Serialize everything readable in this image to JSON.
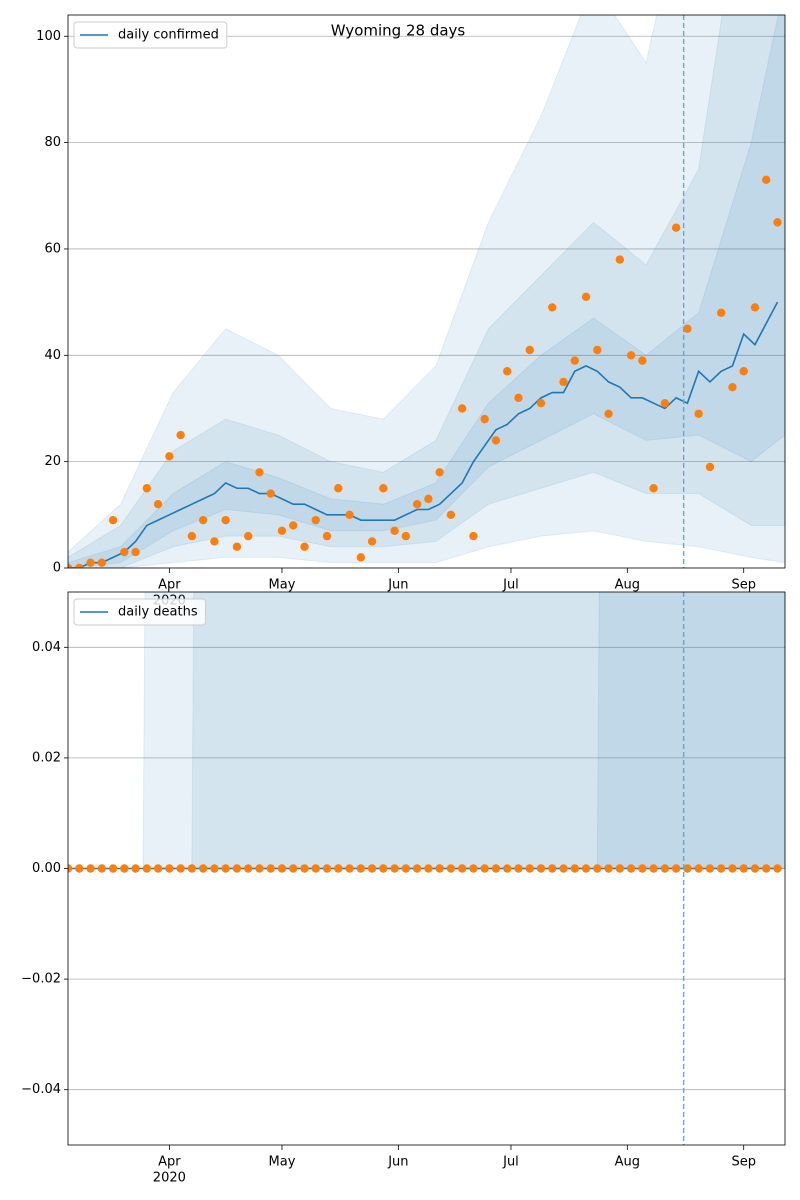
{
  "chart_data": [
    {
      "type": "line",
      "title": "Wyoming 28 days",
      "xlim": [
        "2020-03-05",
        "2020-09-12"
      ],
      "ylim": [
        0,
        104
      ],
      "yticks": [
        0,
        20,
        40,
        60,
        80,
        100
      ],
      "grid": true,
      "xticks": [
        {
          "value": "2020-04-01",
          "label": "Apr",
          "sublabel": "2020"
        },
        {
          "value": "2020-05-01",
          "label": "May"
        },
        {
          "value": "2020-06-01",
          "label": "Jun"
        },
        {
          "value": "2020-07-01",
          "label": "Jul"
        },
        {
          "value": "2020-08-01",
          "label": "Aug"
        },
        {
          "value": "2020-09-01",
          "label": "Sep"
        }
      ],
      "vline": "2020-08-16",
      "vline_color": "#6fa3c7",
      "legend": "upper left",
      "x": [
        "2020-03-05",
        "2020-03-08",
        "2020-03-11",
        "2020-03-14",
        "2020-03-17",
        "2020-03-20",
        "2020-03-23",
        "2020-03-26",
        "2020-03-29",
        "2020-04-01",
        "2020-04-04",
        "2020-04-07",
        "2020-04-10",
        "2020-04-13",
        "2020-04-16",
        "2020-04-19",
        "2020-04-22",
        "2020-04-25",
        "2020-04-28",
        "2020-05-01",
        "2020-05-04",
        "2020-05-07",
        "2020-05-10",
        "2020-05-13",
        "2020-05-16",
        "2020-05-19",
        "2020-05-22",
        "2020-05-25",
        "2020-05-28",
        "2020-05-31",
        "2020-06-03",
        "2020-06-06",
        "2020-06-09",
        "2020-06-12",
        "2020-06-15",
        "2020-06-18",
        "2020-06-21",
        "2020-06-24",
        "2020-06-27",
        "2020-06-30",
        "2020-07-03",
        "2020-07-06",
        "2020-07-09",
        "2020-07-12",
        "2020-07-15",
        "2020-07-18",
        "2020-07-21",
        "2020-07-24",
        "2020-07-27",
        "2020-07-30",
        "2020-08-02",
        "2020-08-05",
        "2020-08-08",
        "2020-08-11",
        "2020-08-14",
        "2020-08-17",
        "2020-08-20",
        "2020-08-23",
        "2020-08-26",
        "2020-08-29",
        "2020-09-01",
        "2020-09-04",
        "2020-09-07",
        "2020-09-10"
      ],
      "bands": [
        {
          "color": "#1f77b4",
          "opacity": 0.1,
          "x": [
            "2020-03-05",
            "2020-03-19",
            "2020-04-02",
            "2020-04-16",
            "2020-04-30",
            "2020-05-14",
            "2020-05-28",
            "2020-06-11",
            "2020-06-25",
            "2020-07-09",
            "2020-07-23",
            "2020-08-06",
            "2020-08-20",
            "2020-09-03",
            "2020-09-12"
          ],
          "lower": [
            0,
            0,
            1,
            2,
            2,
            1,
            1,
            1,
            4,
            6,
            7,
            5,
            4,
            2,
            1
          ],
          "upper": [
            3,
            12,
            33,
            45,
            40,
            30,
            28,
            38,
            65,
            85,
            110,
            95,
            140,
            200,
            250
          ]
        },
        {
          "color": "#1f77b4",
          "opacity": 0.1,
          "x": [
            "2020-03-05",
            "2020-03-19",
            "2020-04-02",
            "2020-04-16",
            "2020-04-30",
            "2020-05-14",
            "2020-05-28",
            "2020-06-11",
            "2020-06-25",
            "2020-07-09",
            "2020-07-23",
            "2020-08-06",
            "2020-08-20",
            "2020-09-03",
            "2020-09-12"
          ],
          "lower": [
            0,
            0,
            4,
            6,
            6,
            4,
            4,
            5,
            12,
            15,
            18,
            14,
            14,
            8,
            8
          ],
          "upper": [
            2,
            8,
            22,
            28,
            25,
            20,
            18,
            24,
            45,
            55,
            65,
            57,
            75,
            140,
            170
          ]
        },
        {
          "color": "#1f77b4",
          "opacity": 0.1,
          "x": [
            "2020-03-05",
            "2020-03-19",
            "2020-04-02",
            "2020-04-16",
            "2020-04-30",
            "2020-05-14",
            "2020-05-28",
            "2020-06-11",
            "2020-06-25",
            "2020-07-09",
            "2020-07-23",
            "2020-08-06",
            "2020-08-20",
            "2020-09-03",
            "2020-09-12"
          ],
          "lower": [
            0,
            1,
            7,
            11,
            10,
            7,
            7,
            9,
            19,
            24,
            29,
            24,
            25,
            20,
            25
          ],
          "upper": [
            1,
            4,
            14,
            20,
            17,
            13,
            12,
            16,
            31,
            40,
            47,
            40,
            48,
            80,
            110
          ]
        }
      ],
      "series": [
        {
          "name": "daily confirmed",
          "type": "line",
          "color": "#1f77b4",
          "values": [
            0,
            0,
            1,
            1,
            2,
            3,
            5,
            8,
            9,
            10,
            11,
            12,
            13,
            14,
            16,
            15,
            15,
            14,
            14,
            13,
            12,
            12,
            11,
            10,
            10,
            10,
            9,
            9,
            9,
            9,
            10,
            11,
            11,
            12,
            14,
            16,
            20,
            23,
            26,
            27,
            29,
            30,
            32,
            33,
            33,
            37,
            38,
            37,
            35,
            34,
            32,
            32,
            31,
            30,
            32,
            31,
            37,
            35,
            37,
            38,
            44,
            42,
            46,
            50
          ]
        },
        {
          "type": "scatter",
          "color": "#ff7f0e",
          "values": [
            0,
            0,
            1,
            1,
            9,
            3,
            3,
            15,
            12,
            21,
            25,
            6,
            9,
            5,
            9,
            4,
            6,
            18,
            14,
            7,
            8,
            4,
            9,
            6,
            15,
            10,
            2,
            5,
            15,
            7,
            6,
            12,
            13,
            18,
            10,
            30,
            6,
            28,
            24,
            37,
            32,
            41,
            31,
            49,
            35,
            39,
            51,
            41,
            29,
            58,
            40,
            39,
            15,
            31,
            64,
            45,
            29,
            19,
            48,
            34,
            37,
            49,
            73,
            65
          ]
        }
      ]
    },
    {
      "type": "line",
      "xlim": [
        "2020-03-05",
        "2020-09-12"
      ],
      "ylim": [
        -0.05,
        0.05
      ],
      "yticks": [
        {
          "value": -0.04,
          "label": "−0.04"
        },
        {
          "value": -0.02,
          "label": "−0.02"
        },
        {
          "value": 0,
          "label": "0.00"
        },
        {
          "value": 0.02,
          "label": "0.02"
        },
        {
          "value": 0.04,
          "label": "0.04"
        }
      ],
      "grid": true,
      "xticks": [
        {
          "value": "2020-04-01",
          "label": "Apr",
          "sublabel": "2020"
        },
        {
          "value": "2020-05-01",
          "label": "May"
        },
        {
          "value": "2020-06-01",
          "label": "Jun"
        },
        {
          "value": "2020-07-01",
          "label": "Jul"
        },
        {
          "value": "2020-08-01",
          "label": "Aug"
        },
        {
          "value": "2020-09-01",
          "label": "Sep"
        }
      ],
      "vline": "2020-08-16",
      "vline_color": "#6fa3c7",
      "legend": "upper left",
      "x": [
        "2020-03-05",
        "2020-03-08",
        "2020-03-11",
        "2020-03-14",
        "2020-03-17",
        "2020-03-20",
        "2020-03-23",
        "2020-03-26",
        "2020-03-29",
        "2020-04-01",
        "2020-04-04",
        "2020-04-07",
        "2020-04-10",
        "2020-04-13",
        "2020-04-16",
        "2020-04-19",
        "2020-04-22",
        "2020-04-25",
        "2020-04-28",
        "2020-05-01",
        "2020-05-04",
        "2020-05-07",
        "2020-05-10",
        "2020-05-13",
        "2020-05-16",
        "2020-05-19",
        "2020-05-22",
        "2020-05-25",
        "2020-05-28",
        "2020-05-31",
        "2020-06-03",
        "2020-06-06",
        "2020-06-09",
        "2020-06-12",
        "2020-06-15",
        "2020-06-18",
        "2020-06-21",
        "2020-06-24",
        "2020-06-27",
        "2020-06-30",
        "2020-07-03",
        "2020-07-06",
        "2020-07-09",
        "2020-07-12",
        "2020-07-15",
        "2020-07-18",
        "2020-07-21",
        "2020-07-24",
        "2020-07-27",
        "2020-07-30",
        "2020-08-02",
        "2020-08-05",
        "2020-08-08",
        "2020-08-11",
        "2020-08-14",
        "2020-08-17",
        "2020-08-20",
        "2020-08-23",
        "2020-08-26",
        "2020-08-29",
        "2020-09-01",
        "2020-09-04",
        "2020-09-07",
        "2020-09-10"
      ],
      "bands": [
        {
          "color": "#1f77b4",
          "opacity": 0.1,
          "x": [
            "2020-03-05",
            "2020-03-25",
            "2020-03-26",
            "2020-09-12"
          ],
          "lower": [
            0,
            0,
            0,
            0
          ],
          "upper": [
            0,
            0,
            0.1,
            0.1
          ]
        },
        {
          "color": "#1f77b4",
          "opacity": 0.1,
          "x": [
            "2020-03-05",
            "2020-04-07",
            "2020-04-08",
            "2020-09-12"
          ],
          "lower": [
            0,
            0,
            0,
            0
          ],
          "upper": [
            0,
            0,
            0.1,
            0.1
          ]
        },
        {
          "color": "#1f77b4",
          "opacity": 0.1,
          "x": [
            "2020-03-05",
            "2020-07-24",
            "2020-07-25",
            "2020-09-12"
          ],
          "lower": [
            0,
            0,
            0,
            0
          ],
          "upper": [
            0,
            0,
            0.1,
            0.1
          ]
        }
      ],
      "series": [
        {
          "name": "daily deaths",
          "type": "line",
          "color": "#1f77b4",
          "values": [
            0,
            0,
            0,
            0,
            0,
            0,
            0,
            0,
            0,
            0,
            0,
            0,
            0,
            0,
            0,
            0,
            0,
            0,
            0,
            0,
            0,
            0,
            0,
            0,
            0,
            0,
            0,
            0,
            0,
            0,
            0,
            0,
            0,
            0,
            0,
            0,
            0,
            0,
            0,
            0,
            0,
            0,
            0,
            0,
            0,
            0,
            0,
            0,
            0,
            0,
            0,
            0,
            0,
            0,
            0,
            0,
            0,
            0,
            0,
            0,
            0,
            0,
            0,
            0
          ]
        },
        {
          "type": "scatter",
          "color": "#ff7f0e",
          "values": [
            0,
            0,
            0,
            0,
            0,
            0,
            0,
            0,
            0,
            0,
            0,
            0,
            0,
            0,
            0,
            0,
            0,
            0,
            0,
            0,
            0,
            0,
            0,
            0,
            0,
            0,
            0,
            0,
            0,
            0,
            0,
            0,
            0,
            0,
            0,
            0,
            0,
            0,
            0,
            0,
            0,
            0,
            0,
            0,
            0,
            0,
            0,
            0,
            0,
            0,
            0,
            0,
            0,
            0,
            0,
            0,
            0,
            0,
            0,
            0,
            0,
            0,
            0,
            0
          ]
        }
      ]
    }
  ]
}
